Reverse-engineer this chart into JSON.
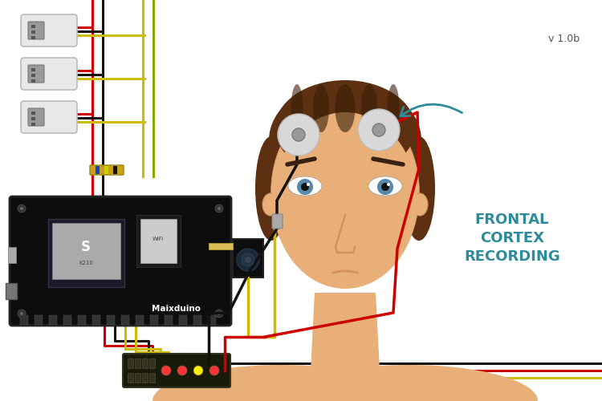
{
  "version_text": "v 1.0b",
  "frontal_text": "FRONTAL\nCORTEX\nRECORDING",
  "maixduino_label": "Maixduino",
  "bg_color": "#FFFFFF",
  "text_color_teal": "#2E8B9A",
  "wire_red": "#CC0000",
  "wire_black": "#111111",
  "wire_yellow": "#CCBB00",
  "wire_green": "#88AA00",
  "board_color": "#111111",
  "skin_color": "#E8B078",
  "skin_shade": "#D49060",
  "skin_light": "#F0C090",
  "hair_color": "#5C3010",
  "hair_dark": "#3A1E08",
  "eye_color": "#5588AA",
  "electrode_outer": "#D8D8D8",
  "electrode_inner": "#999999",
  "connector_body": "#DDDDDD",
  "connector_inner": "#AAAAAA"
}
